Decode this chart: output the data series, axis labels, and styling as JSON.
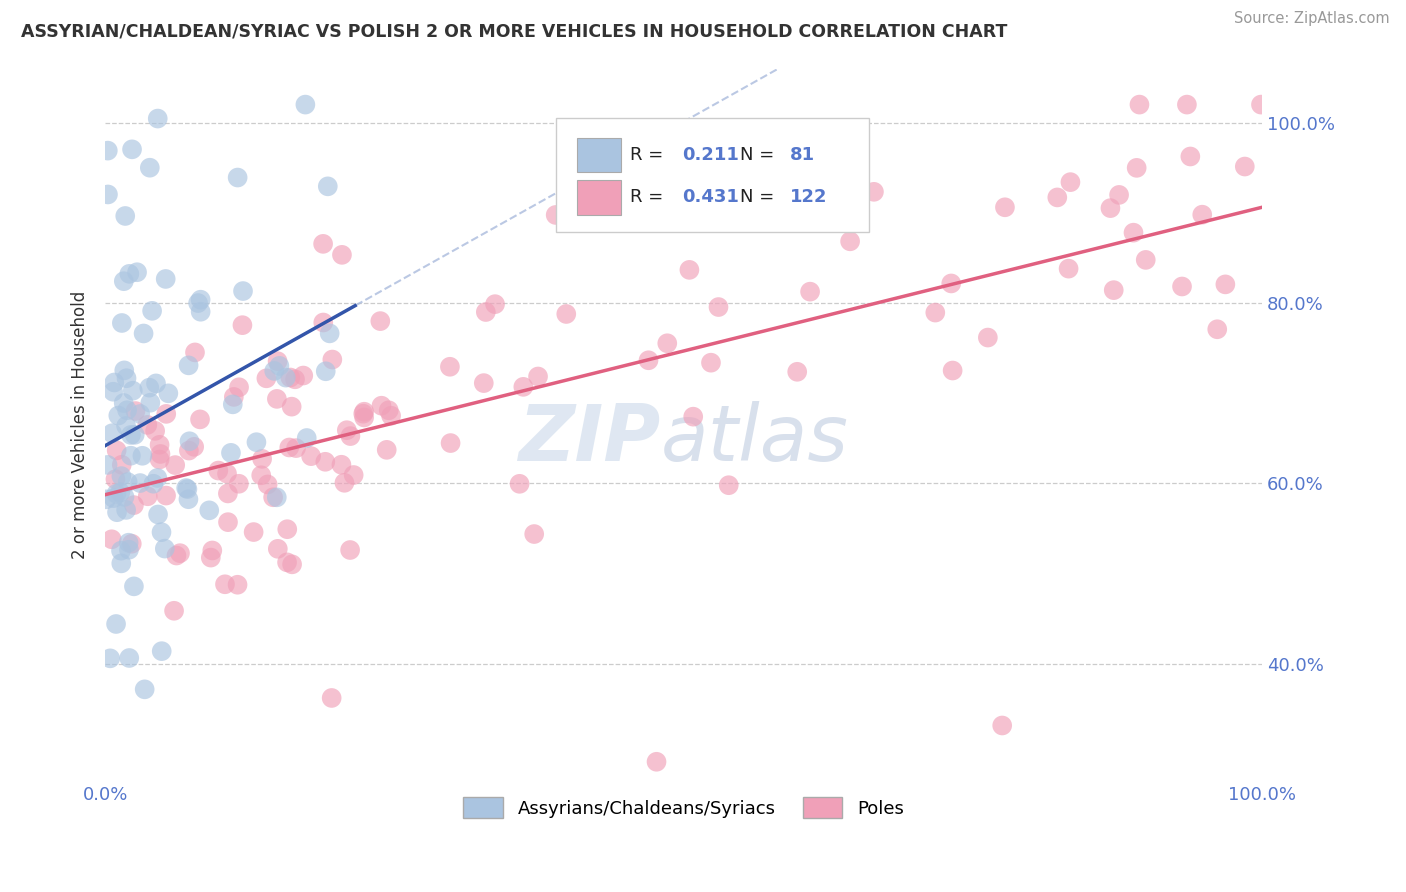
{
  "title": "ASSYRIAN/CHALDEAN/SYRIAC VS POLISH 2 OR MORE VEHICLES IN HOUSEHOLD CORRELATION CHART",
  "source": "Source: ZipAtlas.com",
  "ylabel": "2 or more Vehicles in Household",
  "blue_R": 0.211,
  "blue_N": 81,
  "pink_R": 0.431,
  "pink_N": 122,
  "blue_color": "#aac4e0",
  "pink_color": "#f0a0b8",
  "blue_line_color": "#3355aa",
  "pink_line_color": "#e06080",
  "dashed_line_color": "#aabbdd",
  "legend_label_blue": "Assyrians/Chaldeans/Syriacs",
  "legend_label_pink": "Poles",
  "watermark_zip": "ZIP",
  "watermark_atlas": "atlas",
  "background_color": "#ffffff",
  "grid_color": "#cccccc",
  "tick_color": "#5577cc",
  "title_color": "#333333"
}
